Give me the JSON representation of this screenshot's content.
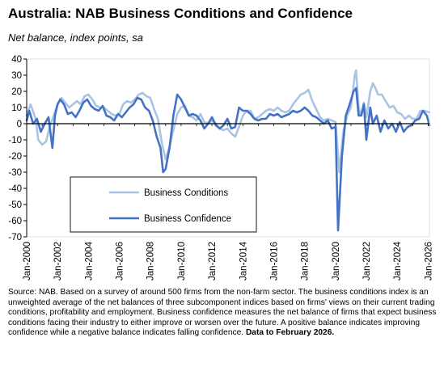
{
  "chart_data": {
    "type": "line",
    "title": "Australia: NAB Business Conditions and Confidence",
    "subtitle": "Net balance, index points, sa",
    "xlabel": "",
    "ylabel": "",
    "x_range": [
      "2000-01",
      "2026-02"
    ],
    "ylim": [
      -70,
      40
    ],
    "yticks": [
      40,
      30,
      20,
      10,
      0,
      -10,
      -20,
      -30,
      -40,
      -50,
      -60,
      -70
    ],
    "xticks": [
      "Jan-2000",
      "Jan-2002",
      "Jan-2004",
      "Jan-2006",
      "Jan-2008",
      "Jan-2010",
      "Jan-2012",
      "Jan-2014",
      "Jan-2016",
      "Jan-2018",
      "Jan-2020",
      "Jan-2022",
      "Jan-2024",
      "Jan-2026"
    ],
    "grid": false,
    "legend_position": "inside-lower-left",
    "series": [
      {
        "name": "Business Conditions",
        "color": "#a9c4e4",
        "points": [
          [
            "2000-01",
            5
          ],
          [
            "2000-04",
            12
          ],
          [
            "2000-08",
            3
          ],
          [
            "2000-10",
            -10
          ],
          [
            "2001-01",
            -13
          ],
          [
            "2001-04",
            -11
          ],
          [
            "2001-07",
            -2
          ],
          [
            "2001-10",
            5
          ],
          [
            "2002-01",
            12
          ],
          [
            "2002-04",
            16
          ],
          [
            "2002-07",
            13
          ],
          [
            "2002-10",
            10
          ],
          [
            "2003-01",
            12
          ],
          [
            "2003-04",
            14
          ],
          [
            "2003-07",
            12
          ],
          [
            "2003-10",
            17
          ],
          [
            "2004-01",
            18
          ],
          [
            "2004-04",
            15
          ],
          [
            "2004-07",
            11
          ],
          [
            "2004-10",
            10
          ],
          [
            "2005-01",
            10
          ],
          [
            "2005-04",
            8
          ],
          [
            "2005-07",
            6
          ],
          [
            "2005-10",
            5
          ],
          [
            "2006-01",
            6
          ],
          [
            "2006-04",
            12
          ],
          [
            "2006-07",
            14
          ],
          [
            "2006-10",
            13
          ],
          [
            "2007-01",
            15
          ],
          [
            "2007-04",
            18
          ],
          [
            "2007-07",
            19
          ],
          [
            "2007-10",
            17
          ],
          [
            "2008-01",
            16
          ],
          [
            "2008-04",
            9
          ],
          [
            "2008-07",
            3
          ],
          [
            "2008-10",
            -12
          ],
          [
            "2009-01",
            -22
          ],
          [
            "2009-04",
            -14
          ],
          [
            "2009-07",
            -4
          ],
          [
            "2009-10",
            6
          ],
          [
            "2010-01",
            10
          ],
          [
            "2010-04",
            11
          ],
          [
            "2010-07",
            5
          ],
          [
            "2010-10",
            4
          ],
          [
            "2011-01",
            2
          ],
          [
            "2011-04",
            6
          ],
          [
            "2011-07",
            1
          ],
          [
            "2011-10",
            0
          ],
          [
            "2012-01",
            2
          ],
          [
            "2012-04",
            0
          ],
          [
            "2012-07",
            -3
          ],
          [
            "2012-10",
            -4
          ],
          [
            "2013-01",
            -3
          ],
          [
            "2013-04",
            -6
          ],
          [
            "2013-07",
            -8
          ],
          [
            "2013-10",
            -2
          ],
          [
            "2014-01",
            5
          ],
          [
            "2014-04",
            8
          ],
          [
            "2014-07",
            8
          ],
          [
            "2014-10",
            3
          ],
          [
            "2015-01",
            4
          ],
          [
            "2015-04",
            6
          ],
          [
            "2015-07",
            8
          ],
          [
            "2015-10",
            9
          ],
          [
            "2016-01",
            8
          ],
          [
            "2016-04",
            10
          ],
          [
            "2016-07",
            8
          ],
          [
            "2016-10",
            7
          ],
          [
            "2017-01",
            8
          ],
          [
            "2017-04",
            12
          ],
          [
            "2017-07",
            15
          ],
          [
            "2017-10",
            18
          ],
          [
            "2018-01",
            19
          ],
          [
            "2018-04",
            21
          ],
          [
            "2018-07",
            14
          ],
          [
            "2018-10",
            9
          ],
          [
            "2019-01",
            4
          ],
          [
            "2019-04",
            2
          ],
          [
            "2019-07",
            3
          ],
          [
            "2019-10",
            2
          ],
          [
            "2020-01",
            1
          ],
          [
            "2020-04",
            -30
          ],
          [
            "2020-07",
            -5
          ],
          [
            "2020-10",
            5
          ],
          [
            "2021-01",
            10
          ],
          [
            "2021-04",
            30
          ],
          [
            "2021-05",
            33
          ],
          [
            "2021-07",
            10
          ],
          [
            "2021-09",
            5
          ],
          [
            "2021-11",
            13
          ],
          [
            "2022-01",
            4
          ],
          [
            "2022-04",
            20
          ],
          [
            "2022-06",
            25
          ],
          [
            "2022-08",
            22
          ],
          [
            "2022-10",
            18
          ],
          [
            "2023-01",
            18
          ],
          [
            "2023-04",
            14
          ],
          [
            "2023-07",
            10
          ],
          [
            "2023-10",
            11
          ],
          [
            "2024-01",
            7
          ],
          [
            "2024-04",
            6
          ],
          [
            "2024-07",
            3
          ],
          [
            "2024-10",
            5
          ],
          [
            "2025-01",
            3
          ],
          [
            "2025-04",
            3
          ],
          [
            "2025-07",
            8
          ],
          [
            "2025-10",
            8
          ],
          [
            "2026-02",
            7
          ]
        ]
      },
      {
        "name": "Business Confidence",
        "color": "#4472c4",
        "points": [
          [
            "2000-01",
            2
          ],
          [
            "2000-03",
            8
          ],
          [
            "2000-06",
            0
          ],
          [
            "2000-09",
            3
          ],
          [
            "2000-12",
            -5
          ],
          [
            "2001-03",
            0
          ],
          [
            "2001-06",
            4
          ],
          [
            "2001-09",
            -15
          ],
          [
            "2001-11",
            5
          ],
          [
            "2002-01",
            12
          ],
          [
            "2002-03",
            15
          ],
          [
            "2002-06",
            12
          ],
          [
            "2002-09",
            6
          ],
          [
            "2002-12",
            7
          ],
          [
            "2003-03",
            4
          ],
          [
            "2003-06",
            8
          ],
          [
            "2003-09",
            13
          ],
          [
            "2003-12",
            15
          ],
          [
            "2004-03",
            11
          ],
          [
            "2004-06",
            9
          ],
          [
            "2004-09",
            8
          ],
          [
            "2004-12",
            11
          ],
          [
            "2005-03",
            5
          ],
          [
            "2005-06",
            4
          ],
          [
            "2005-09",
            2
          ],
          [
            "2005-12",
            6
          ],
          [
            "2006-03",
            4
          ],
          [
            "2006-06",
            7
          ],
          [
            "2006-09",
            10
          ],
          [
            "2006-12",
            12
          ],
          [
            "2007-03",
            16
          ],
          [
            "2007-06",
            15
          ],
          [
            "2007-09",
            10
          ],
          [
            "2007-12",
            8
          ],
          [
            "2008-03",
            2
          ],
          [
            "2008-06",
            -8
          ],
          [
            "2008-09",
            -15
          ],
          [
            "2008-11",
            -30
          ],
          [
            "2009-01",
            -28
          ],
          [
            "2009-04",
            -15
          ],
          [
            "2009-07",
            5
          ],
          [
            "2009-10",
            18
          ],
          [
            "2010-01",
            15
          ],
          [
            "2010-04",
            10
          ],
          [
            "2010-07",
            5
          ],
          [
            "2010-10",
            6
          ],
          [
            "2011-01",
            5
          ],
          [
            "2011-04",
            2
          ],
          [
            "2011-07",
            -3
          ],
          [
            "2011-10",
            0
          ],
          [
            "2012-01",
            4
          ],
          [
            "2012-04",
            -1
          ],
          [
            "2012-07",
            -3
          ],
          [
            "2012-10",
            -1
          ],
          [
            "2013-01",
            3
          ],
          [
            "2013-04",
            -3
          ],
          [
            "2013-07",
            -2
          ],
          [
            "2013-10",
            10
          ],
          [
            "2014-01",
            8
          ],
          [
            "2014-04",
            8
          ],
          [
            "2014-07",
            6
          ],
          [
            "2014-10",
            3
          ],
          [
            "2015-01",
            2
          ],
          [
            "2015-04",
            3
          ],
          [
            "2015-07",
            3
          ],
          [
            "2015-10",
            6
          ],
          [
            "2016-01",
            5
          ],
          [
            "2016-04",
            6
          ],
          [
            "2016-07",
            4
          ],
          [
            "2016-10",
            5
          ],
          [
            "2017-01",
            6
          ],
          [
            "2017-04",
            8
          ],
          [
            "2017-07",
            7
          ],
          [
            "2017-10",
            8
          ],
          [
            "2018-01",
            10
          ],
          [
            "2018-04",
            8
          ],
          [
            "2018-07",
            5
          ],
          [
            "2018-10",
            4
          ],
          [
            "2019-01",
            2
          ],
          [
            "2019-04",
            0
          ],
          [
            "2019-07",
            2
          ],
          [
            "2019-10",
            -3
          ],
          [
            "2020-01",
            -2
          ],
          [
            "2020-03",
            -66
          ],
          [
            "2020-06",
            -20
          ],
          [
            "2020-09",
            5
          ],
          [
            "2020-12",
            12
          ],
          [
            "2021-03",
            20
          ],
          [
            "2021-05",
            22
          ],
          [
            "2021-07",
            5
          ],
          [
            "2021-09",
            5
          ],
          [
            "2021-11",
            12
          ],
          [
            "2022-01",
            -10
          ],
          [
            "2022-04",
            10
          ],
          [
            "2022-06",
            0
          ],
          [
            "2022-09",
            5
          ],
          [
            "2022-12",
            -5
          ],
          [
            "2023-03",
            2
          ],
          [
            "2023-06",
            -3
          ],
          [
            "2023-09",
            0
          ],
          [
            "2023-12",
            -5
          ],
          [
            "2024-03",
            1
          ],
          [
            "2024-06",
            -5
          ],
          [
            "2024-09",
            -2
          ],
          [
            "2024-12",
            -1
          ],
          [
            "2025-03",
            2
          ],
          [
            "2025-06",
            3
          ],
          [
            "2025-09",
            8
          ],
          [
            "2025-12",
            5
          ],
          [
            "2026-02",
            -1
          ]
        ]
      }
    ]
  },
  "footnote": {
    "text": "Source: NAB. Based on a survey of around 500 firms from the non-farm sector.  The business conditions index is an unweighted average of the net balances of three subcomponent indices based on firms' views on their current trading conditions, profitability and employment.  Business confidence measures the net balance of firms that expect business conditions facing their industry to either improve or worsen over the future.  A positive balance indicates improving confidence while a negative balance indicates falling confidence. ",
    "bold": "Data to February 2026."
  }
}
